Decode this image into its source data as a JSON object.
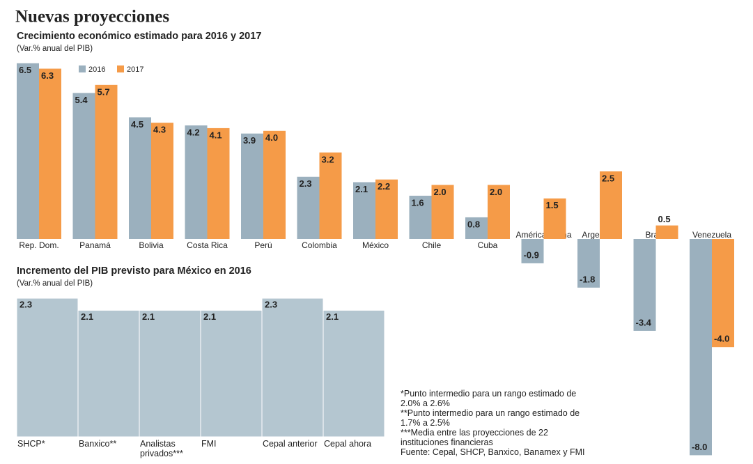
{
  "title": "Nuevas proyecciones",
  "chart_data": [
    {
      "type": "bar",
      "title": "Crecimiento económico estimado para 2016 y 2017",
      "subtitle": "(Var.% anual del PIB)",
      "categories": [
        "Rep. Dom.",
        "Panamá",
        "Bolivia",
        "Costa Rica",
        "Perú",
        "Colombia",
        "México",
        "Chile",
        "Cuba",
        "América Latina",
        "Argentina",
        "Brasil",
        "Venezuela"
      ],
      "series": [
        {
          "name": "2016",
          "color": "#9bb0be",
          "values": [
            6.5,
            5.4,
            4.5,
            4.2,
            3.9,
            2.3,
            2.1,
            1.6,
            0.8,
            -0.9,
            -1.8,
            -3.4,
            -8.0
          ],
          "value_labels": [
            "6.5",
            "5.4",
            "4.5",
            "4.2",
            "3.9",
            "2.3",
            "2.1",
            "1.6",
            "0.8",
            "-0.9",
            "-1.8",
            "-3.4",
            "-8.0"
          ]
        },
        {
          "name": "2017",
          "color": "#f59b48",
          "values": [
            6.3,
            5.7,
            4.3,
            4.1,
            4.0,
            3.2,
            2.2,
            2.0,
            2.0,
            1.5,
            2.5,
            0.5,
            -4.0
          ],
          "value_labels": [
            "6.3",
            "5.7",
            "4.3",
            "4.1",
            "4.0",
            "3.2",
            "2.2",
            "2.0",
            "2.0",
            "1.5",
            "2.5",
            "0.5",
            "-4.0"
          ]
        }
      ]
    },
    {
      "type": "bar",
      "title": "Incremento del PIB previsto para México en 2016",
      "subtitle": "(Var.% anual del PIB)",
      "categories": [
        "SHCP*",
        "Banxico**",
        "Analistas privados***",
        "FMI",
        "Cepal anterior",
        "Cepal ahora"
      ],
      "values": [
        2.3,
        2.1,
        2.1,
        2.1,
        2.3,
        2.1
      ],
      "color": "#b4c6d0"
    }
  ],
  "notes": [
    "*Punto intermedio para un rango estimado de 2.0% a 2.6%",
    "**Punto intermedio para un rango estimado de 1.7% a 2.5%",
    "***Media entre las proyecciones de 22 instituciones financieras",
    "Fuente: Cepal, SHCP, Banxico, Banamex y FMI"
  ]
}
